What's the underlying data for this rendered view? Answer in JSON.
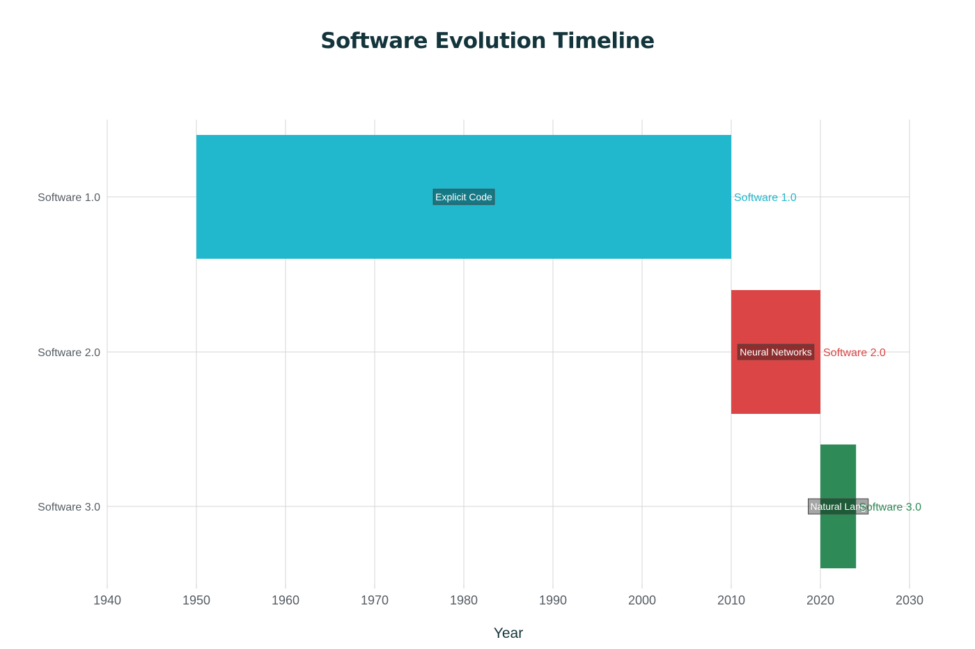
{
  "chart_data": {
    "type": "bar",
    "orientation": "horizontal",
    "title": "Software Evolution Timeline",
    "xlabel": "Year",
    "ylabel": "",
    "xlim": [
      1940,
      2030
    ],
    "x_ticks": [
      "1940",
      "1950",
      "1960",
      "1970",
      "1980",
      "1990",
      "2000",
      "2010",
      "2020",
      "2030"
    ],
    "grid": true,
    "legend": "none",
    "categories": [
      "Software 1.0",
      "Software 2.0",
      "Software 3.0"
    ],
    "series": [
      {
        "category": "Software 1.0",
        "start": 1950,
        "end": 2010,
        "label": "Explicit Code",
        "end_label": "Software 1.0",
        "color": "#21b8cd"
      },
      {
        "category": "Software 2.0",
        "start": 2010,
        "end": 2020,
        "label": "Neural Networks",
        "end_label": "Software 2.0",
        "color": "#db4545"
      },
      {
        "category": "Software 3.0",
        "start": 2020,
        "end": 2024,
        "label": "Natural Lang",
        "end_label": "Software 3.0",
        "color": "#2e8b57"
      }
    ]
  }
}
